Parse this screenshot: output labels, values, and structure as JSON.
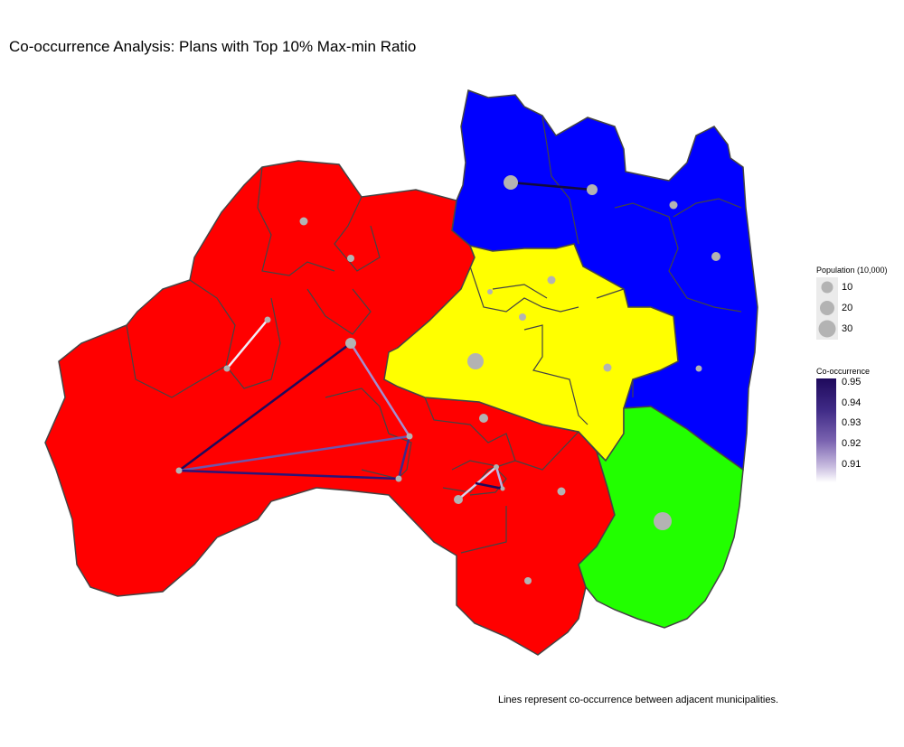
{
  "title": "Co-occurrence Analysis: Plans with Top 10% Max-min Ratio",
  "caption": "Lines represent co-occurrence between adjacent municipalities.",
  "colors": {
    "red": "#ff0000",
    "blue": "#0000ff",
    "yellow": "#ffff00",
    "green": "#22ff00",
    "border": "#444444",
    "population_dot": "#b3b3b3"
  },
  "legend_population": {
    "title": "Population (10,000)",
    "entries": [
      {
        "label": "10",
        "value": 10
      },
      {
        "label": "20",
        "value": 20
      },
      {
        "label": "30",
        "value": 30
      }
    ]
  },
  "legend_cooccurrence": {
    "title": "Co-occurrence",
    "ticks": [
      "0.95",
      "0.94",
      "0.93",
      "0.92",
      "0.91"
    ],
    "low_color": "#ffffff",
    "high_color": "#1f0a5c"
  },
  "districts": [
    {
      "name": "red",
      "color": "#ff0000"
    },
    {
      "name": "blue",
      "color": "#0000ff"
    },
    {
      "name": "yellow",
      "color": "#ffff00"
    },
    {
      "name": "green",
      "color": "#22ff00"
    }
  ]
}
